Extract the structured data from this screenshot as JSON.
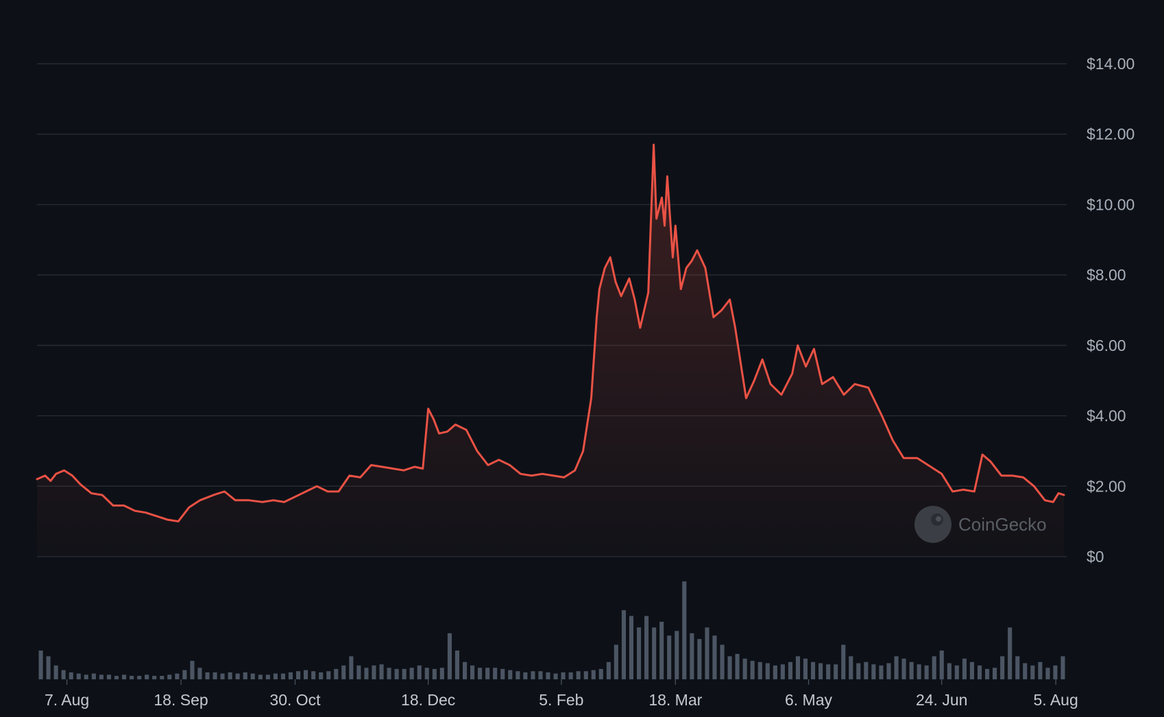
{
  "watermark": "CoinGecko",
  "colors": {
    "background": "#0d1117",
    "price_line": "#ea5245",
    "volume_bar": "#4b5563",
    "grid": "#2a2f38"
  },
  "chart_data": {
    "type": "line",
    "title": "",
    "xlabel": "",
    "ylabel": "",
    "ylim": [
      0,
      14
    ],
    "y_ticks": [
      {
        "value": 14,
        "label": "$14.00"
      },
      {
        "value": 12,
        "label": "$12.00"
      },
      {
        "value": 10,
        "label": "$10.00"
      },
      {
        "value": 8,
        "label": "$8.00"
      },
      {
        "value": 6,
        "label": "$6.00"
      },
      {
        "value": 4,
        "label": "$4.00"
      },
      {
        "value": 2,
        "label": "$2.00"
      },
      {
        "value": 0,
        "label": "$0"
      }
    ],
    "x_range": [
      "2023-07-27",
      "2024-08-09"
    ],
    "x_ticks": [
      {
        "date": "2023-08-07",
        "label": "7. Aug"
      },
      {
        "date": "2023-09-18",
        "label": "18. Sep"
      },
      {
        "date": "2023-10-30",
        "label": "30. Oct"
      },
      {
        "date": "2023-12-18",
        "label": "18. Dec"
      },
      {
        "date": "2024-02-05",
        "label": "5. Feb"
      },
      {
        "date": "2024-03-18",
        "label": "18. Mar"
      },
      {
        "date": "2024-05-06",
        "label": "6. May"
      },
      {
        "date": "2024-06-24",
        "label": "24. Jun"
      },
      {
        "date": "2024-08-05",
        "label": "5. Aug"
      }
    ],
    "grid": true,
    "legend": "none",
    "series": [
      {
        "type": "line",
        "points": [
          [
            "2023-07-27",
            2.2
          ],
          [
            "2023-07-30",
            2.3
          ],
          [
            "2023-08-01",
            2.15
          ],
          [
            "2023-08-03",
            2.35
          ],
          [
            "2023-08-06",
            2.45
          ],
          [
            "2023-08-09",
            2.3
          ],
          [
            "2023-08-12",
            2.05
          ],
          [
            "2023-08-16",
            1.8
          ],
          [
            "2023-08-20",
            1.75
          ],
          [
            "2023-08-24",
            1.45
          ],
          [
            "2023-08-28",
            1.45
          ],
          [
            "2023-09-01",
            1.3
          ],
          [
            "2023-09-05",
            1.25
          ],
          [
            "2023-09-09",
            1.15
          ],
          [
            "2023-09-13",
            1.05
          ],
          [
            "2023-09-17",
            1.0
          ],
          [
            "2023-09-21",
            1.4
          ],
          [
            "2023-09-25",
            1.6
          ],
          [
            "2023-09-30",
            1.75
          ],
          [
            "2023-10-04",
            1.85
          ],
          [
            "2023-10-08",
            1.6
          ],
          [
            "2023-10-13",
            1.6
          ],
          [
            "2023-10-18",
            1.55
          ],
          [
            "2023-10-22",
            1.6
          ],
          [
            "2023-10-26",
            1.55
          ],
          [
            "2023-10-30",
            1.7
          ],
          [
            "2023-11-03",
            1.85
          ],
          [
            "2023-11-07",
            2.0
          ],
          [
            "2023-11-11",
            1.85
          ],
          [
            "2023-11-15",
            1.85
          ],
          [
            "2023-11-19",
            2.3
          ],
          [
            "2023-11-23",
            2.25
          ],
          [
            "2023-11-27",
            2.6
          ],
          [
            "2023-12-01",
            2.55
          ],
          [
            "2023-12-05",
            2.5
          ],
          [
            "2023-12-09",
            2.45
          ],
          [
            "2023-12-13",
            2.55
          ],
          [
            "2023-12-16",
            2.5
          ],
          [
            "2023-12-18",
            4.2
          ],
          [
            "2023-12-20",
            3.9
          ],
          [
            "2023-12-22",
            3.5
          ],
          [
            "2023-12-25",
            3.55
          ],
          [
            "2023-12-28",
            3.75
          ],
          [
            "2024-01-01",
            3.6
          ],
          [
            "2024-01-05",
            3.0
          ],
          [
            "2024-01-09",
            2.6
          ],
          [
            "2024-01-13",
            2.75
          ],
          [
            "2024-01-17",
            2.6
          ],
          [
            "2024-01-21",
            2.35
          ],
          [
            "2024-01-25",
            2.3
          ],
          [
            "2024-01-29",
            2.35
          ],
          [
            "2024-02-02",
            2.3
          ],
          [
            "2024-02-06",
            2.25
          ],
          [
            "2024-02-10",
            2.45
          ],
          [
            "2024-02-13",
            3.0
          ],
          [
            "2024-02-16",
            4.5
          ],
          [
            "2024-02-18",
            6.8
          ],
          [
            "2024-02-19",
            7.6
          ],
          [
            "2024-02-21",
            8.2
          ],
          [
            "2024-02-23",
            8.5
          ],
          [
            "2024-02-25",
            7.8
          ],
          [
            "2024-02-27",
            7.4
          ],
          [
            "2024-03-01",
            7.9
          ],
          [
            "2024-03-03",
            7.3
          ],
          [
            "2024-03-05",
            6.5
          ],
          [
            "2024-03-08",
            7.5
          ],
          [
            "2024-03-10",
            11.7
          ],
          [
            "2024-03-11",
            9.6
          ],
          [
            "2024-03-13",
            10.2
          ],
          [
            "2024-03-14",
            9.4
          ],
          [
            "2024-03-15",
            10.8
          ],
          [
            "2024-03-17",
            8.5
          ],
          [
            "2024-03-18",
            9.4
          ],
          [
            "2024-03-20",
            7.6
          ],
          [
            "2024-03-22",
            8.2
          ],
          [
            "2024-03-24",
            8.4
          ],
          [
            "2024-03-26",
            8.7
          ],
          [
            "2024-03-29",
            8.2
          ],
          [
            "2024-04-01",
            6.8
          ],
          [
            "2024-04-04",
            7.0
          ],
          [
            "2024-04-07",
            7.3
          ],
          [
            "2024-04-09",
            6.5
          ],
          [
            "2024-04-13",
            4.5
          ],
          [
            "2024-04-16",
            5.0
          ],
          [
            "2024-04-19",
            5.6
          ],
          [
            "2024-04-22",
            4.9
          ],
          [
            "2024-04-26",
            4.6
          ],
          [
            "2024-04-30",
            5.2
          ],
          [
            "2024-05-02",
            6.0
          ],
          [
            "2024-05-05",
            5.4
          ],
          [
            "2024-05-08",
            5.9
          ],
          [
            "2024-05-11",
            4.9
          ],
          [
            "2024-05-15",
            5.1
          ],
          [
            "2024-05-19",
            4.6
          ],
          [
            "2024-05-23",
            4.9
          ],
          [
            "2024-05-28",
            4.8
          ],
          [
            "2024-06-02",
            4.0
          ],
          [
            "2024-06-06",
            3.3
          ],
          [
            "2024-06-10",
            2.8
          ],
          [
            "2024-06-15",
            2.8
          ],
          [
            "2024-06-20",
            2.55
          ],
          [
            "2024-06-24",
            2.35
          ],
          [
            "2024-06-28",
            1.85
          ],
          [
            "2024-07-02",
            1.9
          ],
          [
            "2024-07-06",
            1.85
          ],
          [
            "2024-07-09",
            2.9
          ],
          [
            "2024-07-12",
            2.7
          ],
          [
            "2024-07-16",
            2.3
          ],
          [
            "2024-07-20",
            2.3
          ],
          [
            "2024-07-24",
            2.25
          ],
          [
            "2024-07-28",
            2.0
          ],
          [
            "2024-08-01",
            1.6
          ],
          [
            "2024-08-04",
            1.55
          ],
          [
            "2024-08-06",
            1.8
          ],
          [
            "2024-08-08",
            1.75
          ]
        ]
      },
      {
        "type": "bar",
        "note": "",
        "values": [
          0.25,
          0.2,
          0.12,
          0.08,
          0.06,
          0.05,
          0.04,
          0.05,
          0.04,
          0.04,
          0.03,
          0.04,
          0.03,
          0.03,
          0.04,
          0.03,
          0.03,
          0.04,
          0.05,
          0.08,
          0.16,
          0.1,
          0.06,
          0.06,
          0.05,
          0.06,
          0.05,
          0.06,
          0.05,
          0.04,
          0.04,
          0.05,
          0.05,
          0.06,
          0.07,
          0.08,
          0.07,
          0.06,
          0.07,
          0.09,
          0.12,
          0.2,
          0.12,
          0.1,
          0.12,
          0.13,
          0.1,
          0.09,
          0.09,
          0.1,
          0.12,
          0.1,
          0.09,
          0.1,
          0.4,
          0.25,
          0.15,
          0.12,
          0.1,
          0.1,
          0.1,
          0.09,
          0.08,
          0.07,
          0.06,
          0.07,
          0.07,
          0.06,
          0.05,
          0.06,
          0.06,
          0.07,
          0.07,
          0.08,
          0.09,
          0.15,
          0.3,
          0.6,
          0.55,
          0.45,
          0.55,
          0.45,
          0.5,
          0.38,
          0.42,
          0.85,
          0.4,
          0.35,
          0.45,
          0.38,
          0.3,
          0.2,
          0.22,
          0.18,
          0.16,
          0.15,
          0.14,
          0.12,
          0.13,
          0.15,
          0.2,
          0.18,
          0.15,
          0.14,
          0.13,
          0.13,
          0.3,
          0.2,
          0.14,
          0.15,
          0.13,
          0.12,
          0.14,
          0.2,
          0.18,
          0.15,
          0.13,
          0.12,
          0.2,
          0.25,
          0.14,
          0.12,
          0.18,
          0.15,
          0.12,
          0.09,
          0.1,
          0.2,
          0.45,
          0.2,
          0.14,
          0.12,
          0.15,
          0.1,
          0.12,
          0.2
        ]
      }
    ]
  }
}
